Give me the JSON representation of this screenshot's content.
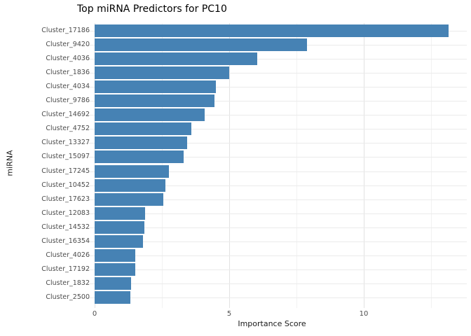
{
  "chart_data": {
    "type": "bar",
    "orientation": "horizontal",
    "title": "Top miRNA Predictors for PC10",
    "xlabel": "Importance Score",
    "ylabel": "miRNA",
    "categories": [
      "Cluster_17186",
      "Cluster_9420",
      "Cluster_4036",
      "Cluster_1836",
      "Cluster_4034",
      "Cluster_9786",
      "Cluster_14692",
      "Cluster_4752",
      "Cluster_13327",
      "Cluster_15097",
      "Cluster_17245",
      "Cluster_10452",
      "Cluster_17623",
      "Cluster_12083",
      "Cluster_14532",
      "Cluster_16354",
      "Cluster_4026",
      "Cluster_17192",
      "Cluster_1832",
      "Cluster_2500"
    ],
    "values": [
      13.15,
      7.9,
      6.05,
      5.0,
      4.5,
      4.45,
      4.1,
      3.6,
      3.45,
      3.3,
      2.76,
      2.63,
      2.55,
      1.88,
      1.85,
      1.8,
      1.51,
      1.5,
      1.35,
      1.33
    ],
    "x_major_ticks": [
      0,
      5,
      10
    ],
    "x_major_tick_labels": [
      "0",
      "5",
      "10"
    ],
    "x_minor_gridlines": [
      2.5,
      7.5,
      12.5
    ],
    "xlim": [
      -0.66,
      13.83
    ],
    "grid": "on",
    "legend": "none",
    "colors": {
      "bar": "#4682b4",
      "grid_major": "#e2e2e2",
      "grid_minor": "#f2f2f2",
      "tick_text": "#4d4d4d",
      "title_text": "#000000",
      "background": "#ffffff"
    }
  }
}
